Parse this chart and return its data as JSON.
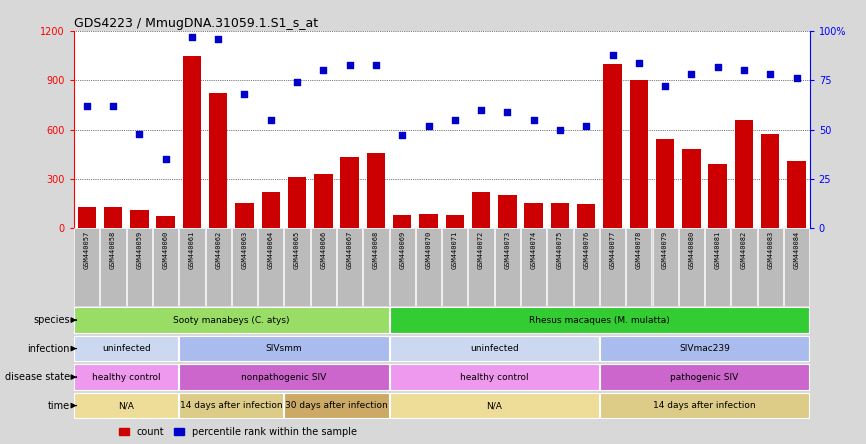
{
  "title": "GDS4223 / MmugDNA.31059.1.S1_s_at",
  "samples": [
    "GSM440057",
    "GSM440058",
    "GSM440059",
    "GSM440060",
    "GSM440061",
    "GSM440062",
    "GSM440063",
    "GSM440064",
    "GSM440065",
    "GSM440066",
    "GSM440067",
    "GSM440068",
    "GSM440069",
    "GSM440070",
    "GSM440071",
    "GSM440072",
    "GSM440073",
    "GSM440074",
    "GSM440075",
    "GSM440076",
    "GSM440077",
    "GSM440078",
    "GSM440079",
    "GSM440080",
    "GSM440081",
    "GSM440082",
    "GSM440083",
    "GSM440084"
  ],
  "counts": [
    130,
    130,
    110,
    75,
    1050,
    820,
    150,
    220,
    310,
    330,
    430,
    460,
    80,
    85,
    80,
    220,
    200,
    155,
    150,
    145,
    1000,
    900,
    540,
    480,
    390,
    660,
    570,
    410
  ],
  "percentile_ranks": [
    62,
    62,
    48,
    35,
    97,
    96,
    68,
    55,
    74,
    80,
    83,
    83,
    47,
    52,
    55,
    60,
    59,
    55,
    50,
    52,
    88,
    84,
    72,
    78,
    82,
    80,
    78,
    76
  ],
  "bar_color": "#cc0000",
  "dot_color": "#0000cc",
  "ylim_left": [
    0,
    1200
  ],
  "ylim_right": [
    0,
    100
  ],
  "yticks_left": [
    0,
    300,
    600,
    900,
    1200
  ],
  "yticks_right": [
    0,
    25,
    50,
    75,
    100
  ],
  "background_color": "#d8d8d8",
  "plot_bg": "#ffffff",
  "label_color": "#000000",
  "species_row": {
    "label": "species",
    "sections": [
      {
        "text": "Sooty manabeys (C. atys)",
        "start": 0,
        "end": 12,
        "color": "#99dd66"
      },
      {
        "text": "Rhesus macaques (M. mulatta)",
        "start": 12,
        "end": 28,
        "color": "#33cc33"
      }
    ]
  },
  "infection_row": {
    "label": "infection",
    "sections": [
      {
        "text": "uninfected",
        "start": 0,
        "end": 4,
        "color": "#ccd8f0"
      },
      {
        "text": "SIVsmm",
        "start": 4,
        "end": 12,
        "color": "#aabbee"
      },
      {
        "text": "uninfected",
        "start": 12,
        "end": 20,
        "color": "#ccd8f0"
      },
      {
        "text": "SIVmac239",
        "start": 20,
        "end": 28,
        "color": "#aabbee"
      }
    ]
  },
  "disease_row": {
    "label": "disease state",
    "sections": [
      {
        "text": "healthy control",
        "start": 0,
        "end": 4,
        "color": "#ee99ee"
      },
      {
        "text": "nonpathogenic SIV",
        "start": 4,
        "end": 12,
        "color": "#cc66cc"
      },
      {
        "text": "healthy control",
        "start": 12,
        "end": 20,
        "color": "#ee99ee"
      },
      {
        "text": "pathogenic SIV",
        "start": 20,
        "end": 28,
        "color": "#cc66cc"
      }
    ]
  },
  "time_row": {
    "label": "time",
    "sections": [
      {
        "text": "N/A",
        "start": 0,
        "end": 4,
        "color": "#eedd99"
      },
      {
        "text": "14 days after infection",
        "start": 4,
        "end": 8,
        "color": "#ddcc88"
      },
      {
        "text": "30 days after infection",
        "start": 8,
        "end": 12,
        "color": "#ccaa66"
      },
      {
        "text": "N/A",
        "start": 12,
        "end": 20,
        "color": "#eedd99"
      },
      {
        "text": "14 days after infection",
        "start": 20,
        "end": 28,
        "color": "#ddcc88"
      }
    ]
  }
}
